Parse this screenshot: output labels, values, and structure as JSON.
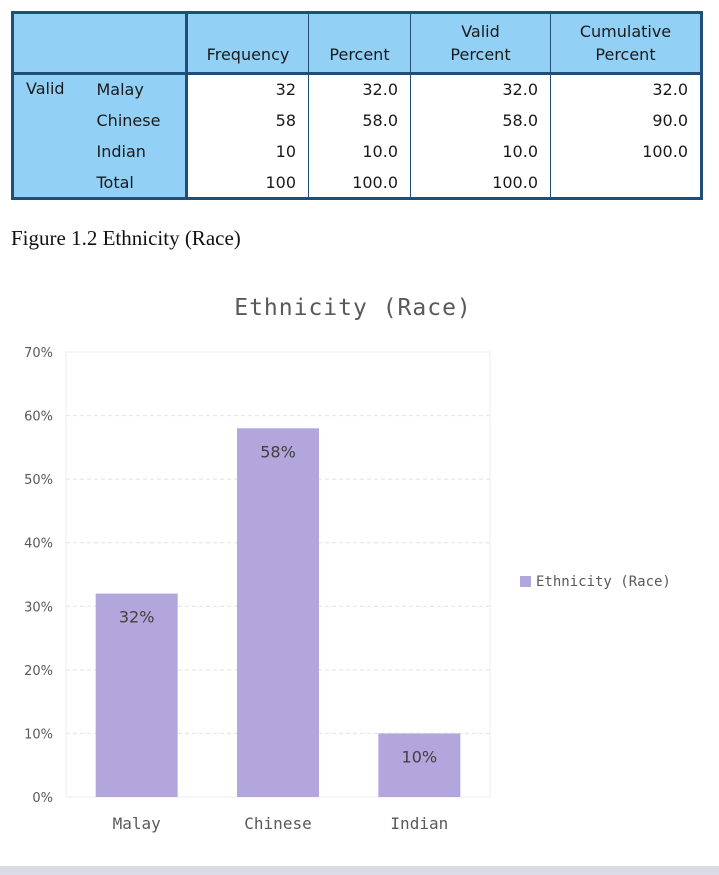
{
  "table": {
    "headers": [
      "",
      "",
      "Frequency",
      "Percent",
      "Valid Percent",
      "Cumulative Percent"
    ],
    "group_label": "Valid",
    "rows": [
      {
        "label": "Malay",
        "frequency": "32",
        "percent": "32.0",
        "valid_percent": "32.0",
        "cumulative_percent": "32.0"
      },
      {
        "label": "Chinese",
        "frequency": "58",
        "percent": "58.0",
        "valid_percent": "58.0",
        "cumulative_percent": "90.0"
      },
      {
        "label": "Indian",
        "frequency": "10",
        "percent": "10.0",
        "valid_percent": "10.0",
        "cumulative_percent": "100.0"
      },
      {
        "label": "Total",
        "frequency": "100",
        "percent": "100.0",
        "valid_percent": "100.0",
        "cumulative_percent": ""
      }
    ]
  },
  "caption": "Figure 1.2 Ethnicity (Race)",
  "chart_data": {
    "type": "bar",
    "title": "Ethnicity (Race)",
    "categories": [
      "Malay",
      "Chinese",
      "Indian"
    ],
    "series": [
      {
        "name": "Ethnicity (Race)",
        "values": [
          32,
          58,
          10
        ]
      }
    ],
    "data_labels": [
      "32%",
      "58%",
      "10%"
    ],
    "yticks": [
      0,
      10,
      20,
      30,
      40,
      50,
      60,
      70
    ],
    "ytick_labels": [
      "0%",
      "10%",
      "20%",
      "30%",
      "40%",
      "50%",
      "60%",
      "70%"
    ],
    "ylim": [
      0,
      70
    ],
    "xlabel": "",
    "ylabel": "",
    "grid": true,
    "legend_position": "right",
    "colors": {
      "bar": "#b2a6dc",
      "grid": "#e3e3e3",
      "axis_text": "#595959"
    }
  }
}
